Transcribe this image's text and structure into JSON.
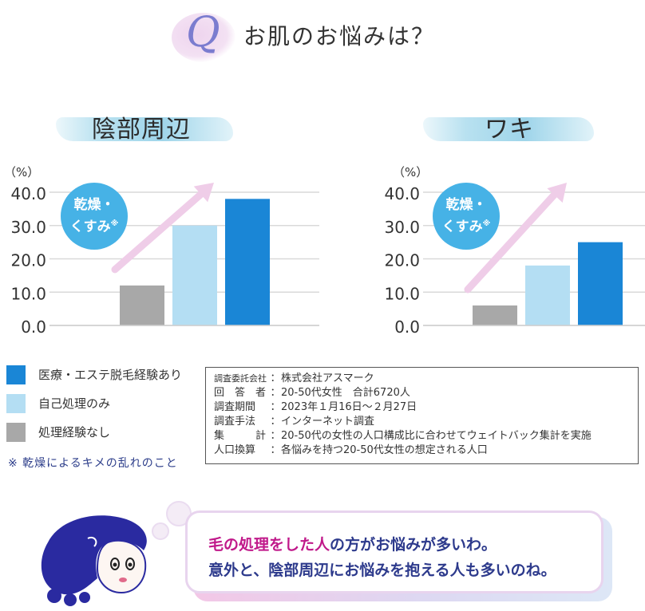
{
  "header": {
    "q_letter": "Q",
    "title": "お肌のお悩みは？"
  },
  "colors": {
    "treatment": "#1a86d6",
    "self": "#b4def3",
    "none": "#a8a8a8",
    "bubble": "#46b2e6",
    "arrow": "#efcde8",
    "accent": "#c0198a",
    "text_navy": "#2d3a8c"
  },
  "chart_data": [
    {
      "type": "bar",
      "title": "陰部周辺",
      "unit_label": "（%）",
      "ylim": [
        0,
        40
      ],
      "yticks": [
        "0.0",
        "10.0",
        "20.0",
        "30.0",
        "40.0"
      ],
      "grid": true,
      "categories": [
        "処理経験なし",
        "自己処理のみ",
        "医療・エステ脱毛経験あり"
      ],
      "values": [
        12,
        30,
        38
      ],
      "bubble": {
        "line1": "乾燥・",
        "line2": "くすみ",
        "mark": "※"
      }
    },
    {
      "type": "bar",
      "title": "ワキ",
      "unit_label": "（%）",
      "ylim": [
        0,
        40
      ],
      "yticks": [
        "0.0",
        "10.0",
        "20.0",
        "30.0",
        "40.0"
      ],
      "grid": true,
      "categories": [
        "処理経験なし",
        "自己処理のみ",
        "医療・エステ脱毛経験あり"
      ],
      "values": [
        6,
        18,
        25
      ],
      "bubble": {
        "line1": "乾燥・",
        "line2": "くすみ",
        "mark": "※"
      }
    }
  ],
  "legend": {
    "placement": "bottom-left",
    "items": [
      {
        "label": "医療・エステ脱毛経験あり",
        "color": "#1a86d6"
      },
      {
        "label": "自己処理のみ",
        "color": "#b4def3"
      },
      {
        "label": "処理経験なし",
        "color": "#a8a8a8"
      }
    ]
  },
  "note": "※ 乾燥によるキメの乱れのこと",
  "survey": [
    {
      "label": "調査委託会社",
      "value": "株式会社アスマーク"
    },
    {
      "label": "回　答　者",
      "value": "20-50代女性　合計6720人"
    },
    {
      "label": "調査期間",
      "value": "2023年１月16日～２月27日"
    },
    {
      "label": "調査手法",
      "value": "インターネット調査"
    },
    {
      "label": "集　　　計",
      "value": "20-50代の女性の人口構成比に合わせてウェイトバック集計を実施"
    },
    {
      "label": "人口換算",
      "value": "各悩みを持つ20-50代女性の想定される人口"
    }
  ],
  "message": {
    "line1": [
      {
        "text": "毛の処理をした人",
        "hl": true
      },
      {
        "text": "の方がお悩みが多いわ。",
        "hl": false
      }
    ],
    "line2": "意外と、陰部周辺にお悩みを抱える人も多いのね。"
  }
}
